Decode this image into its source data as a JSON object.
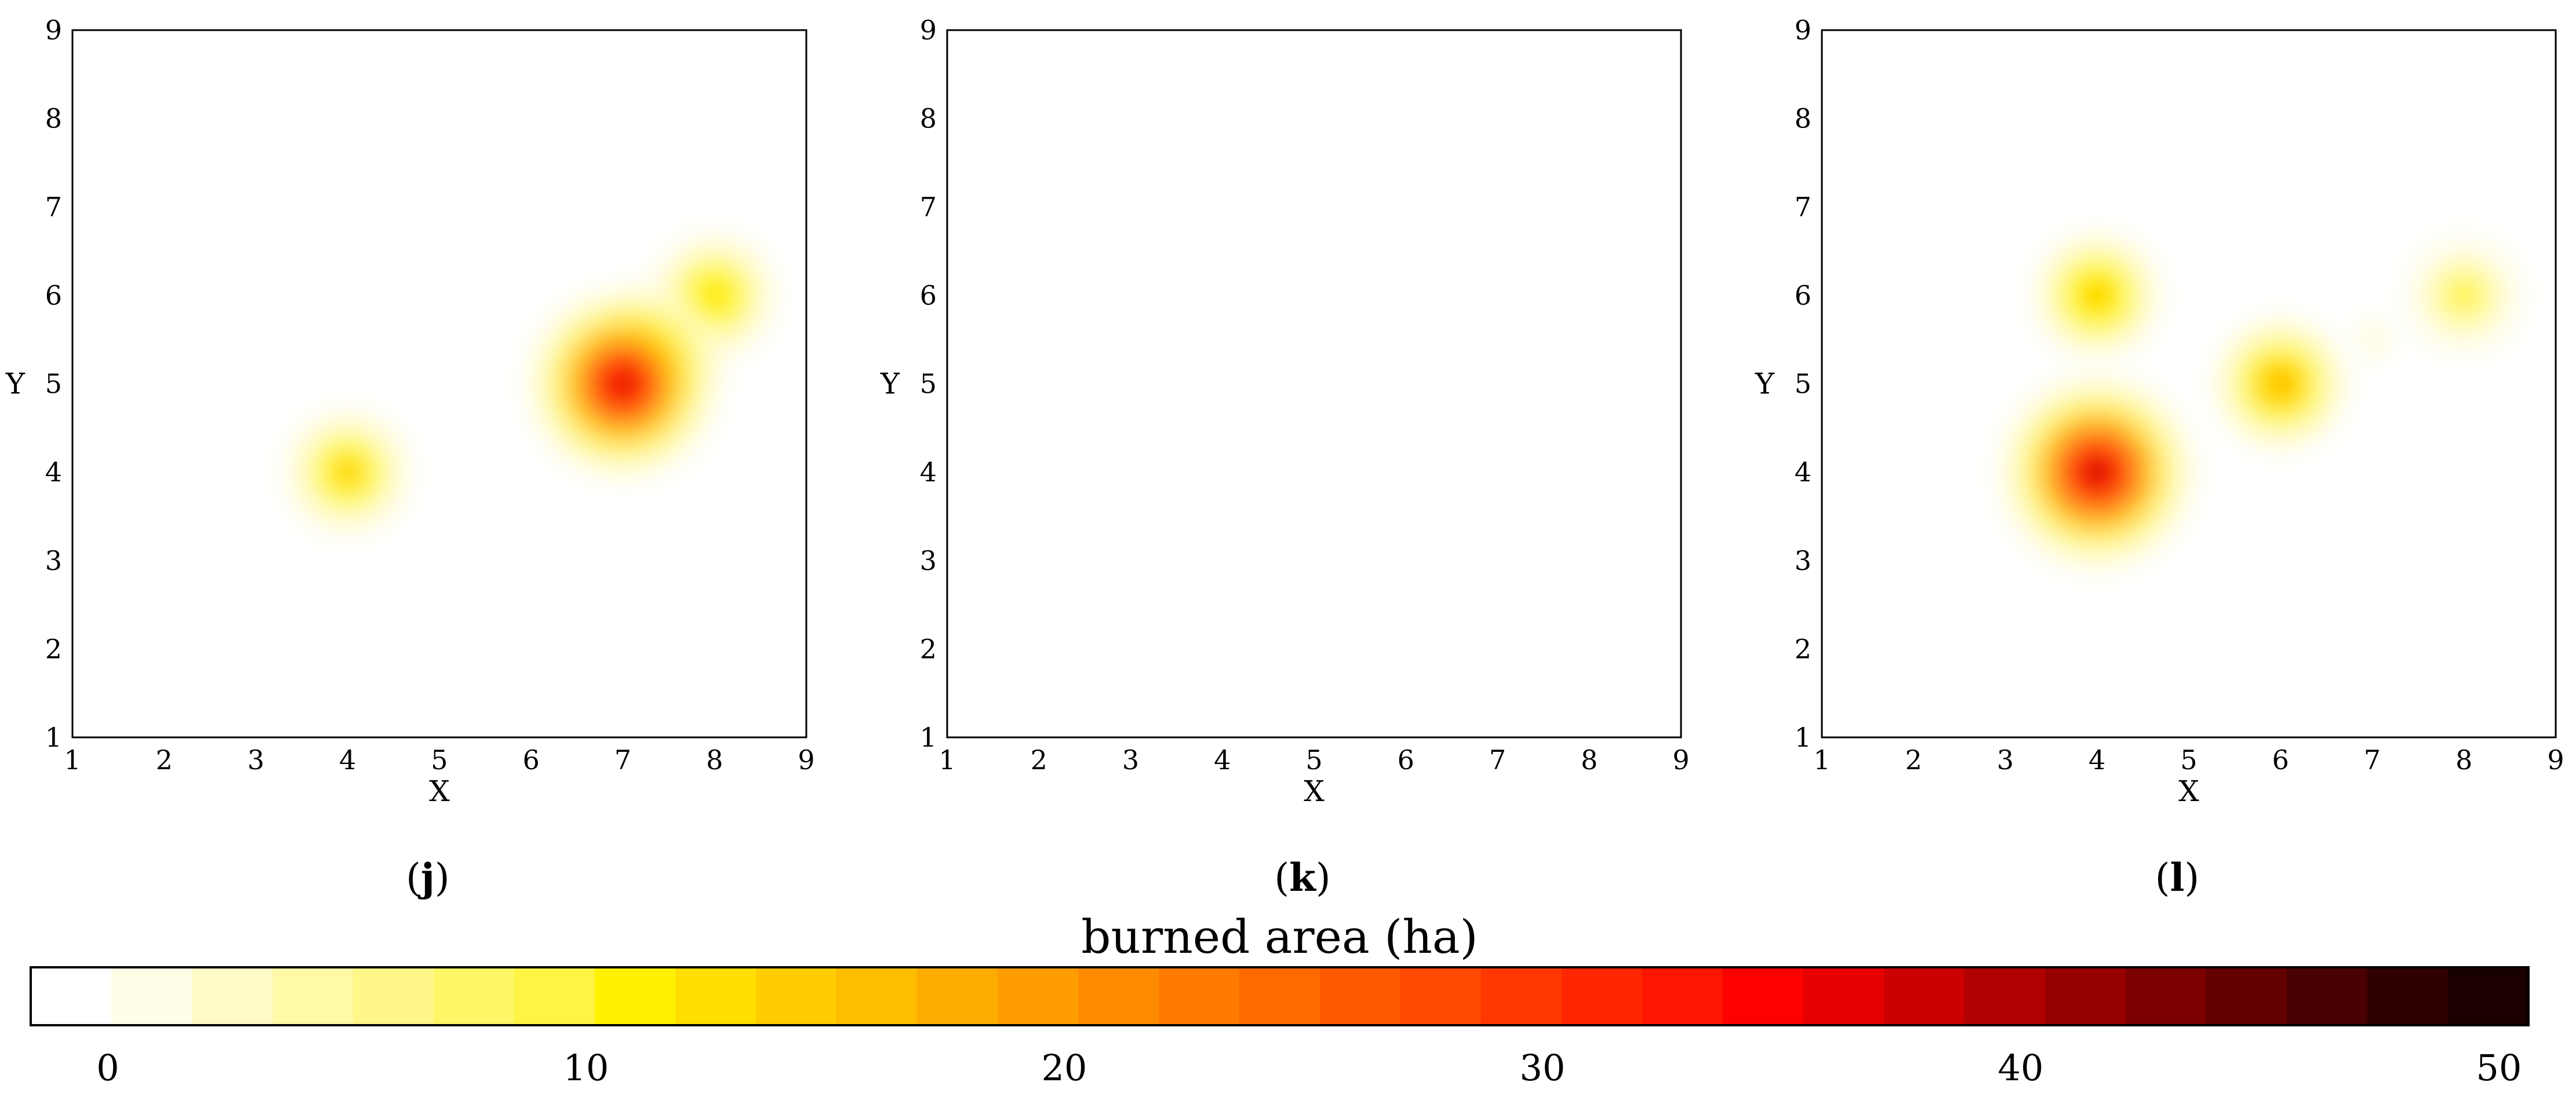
{
  "chart_data": {
    "type": "heatmap",
    "colorbar": {
      "title": "burned area (ha)",
      "range": [
        0,
        52
      ],
      "ticks": [
        0,
        10,
        20,
        30,
        40,
        50
      ],
      "colors": [
        "#ffffff",
        "#fffde6",
        "#fffbc8",
        "#fff9a8",
        "#fff788",
        "#fff668",
        "#fff444",
        "#fff200",
        "#ffde00",
        "#ffcd00",
        "#ffbd00",
        "#ffac00",
        "#ff9c00",
        "#ff8c00",
        "#ff7b00",
        "#ff6a00",
        "#ff5900",
        "#ff4800",
        "#ff3700",
        "#ff2600",
        "#ff1500",
        "#ff0000",
        "#e60000",
        "#cc0000",
        "#b00000",
        "#960000",
        "#7c0000",
        "#620000",
        "#480000",
        "#2e0000",
        "#1a0000"
      ]
    },
    "panels": [
      {
        "label": "j",
        "xlabel": "X",
        "ylabel": "Y",
        "xlim": [
          1,
          9
        ],
        "ylim": [
          1,
          9
        ],
        "xticks": [
          1,
          2,
          3,
          4,
          5,
          6,
          7,
          8,
          9
        ],
        "yticks": [
          1,
          2,
          3,
          4,
          5,
          6,
          7,
          8,
          9
        ],
        "hotspots": [
          {
            "x": 4,
            "y": 4,
            "value": 17
          },
          {
            "x": 7,
            "y": 5,
            "value": 40
          },
          {
            "x": 7.5,
            "y": 5.5,
            "value": 16
          },
          {
            "x": 8,
            "y": 6,
            "value": 16
          }
        ]
      },
      {
        "label": "k",
        "xlabel": "X",
        "ylabel": "Y",
        "xlim": [
          1,
          9
        ],
        "ylim": [
          1,
          9
        ],
        "xticks": [
          1,
          2,
          3,
          4,
          5,
          6,
          7,
          8,
          9
        ],
        "yticks": [
          1,
          2,
          3,
          4,
          5,
          6,
          7,
          8,
          9
        ],
        "hotspots": []
      },
      {
        "label": "l",
        "xlabel": "X",
        "ylabel": "Y",
        "xlim": [
          1,
          9
        ],
        "ylim": [
          1,
          9
        ],
        "xticks": [
          1,
          2,
          3,
          4,
          5,
          6,
          7,
          8,
          9
        ],
        "yticks": [
          1,
          2,
          3,
          4,
          5,
          6,
          7,
          8,
          9
        ],
        "hotspots": [
          {
            "x": 4,
            "y": 4,
            "value": 42
          },
          {
            "x": 4,
            "y": 6,
            "value": 18
          },
          {
            "x": 6,
            "y": 5,
            "value": 20
          },
          {
            "x": 8,
            "y": 6,
            "value": 12
          },
          {
            "x": 7,
            "y": 5.5,
            "value": 3
          }
        ]
      }
    ]
  }
}
